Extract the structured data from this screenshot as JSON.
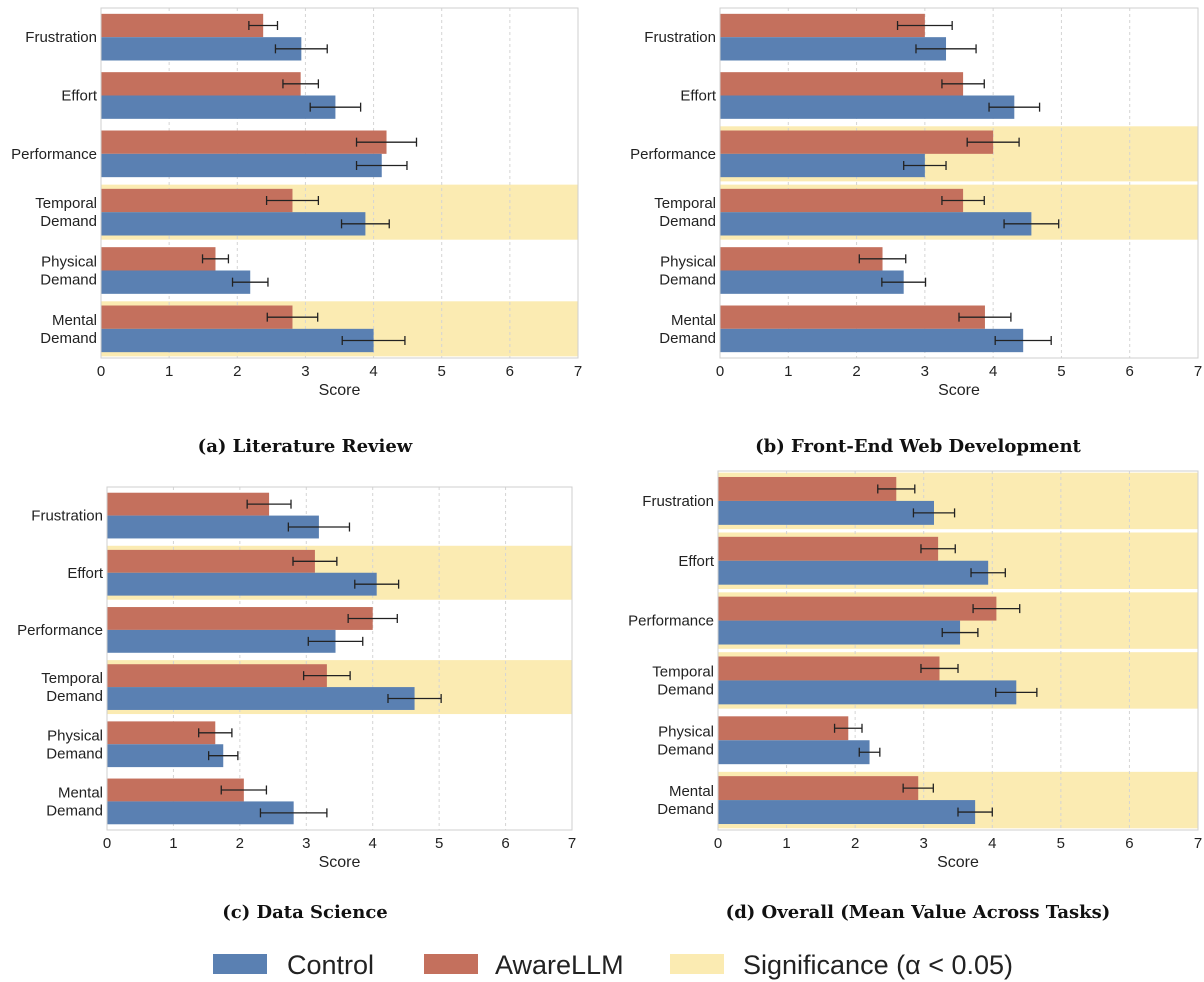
{
  "legend": {
    "control_label": "Control",
    "awarellm_label": "AwareLLM",
    "significance_label": "Significance (α < 0.05)"
  },
  "colors": {
    "control": "#5a80b2",
    "awarellm": "#c4705d",
    "significance": "#fbebb2",
    "grid": "#d4d4d4",
    "errorbar": "#222222"
  },
  "chart_data": [
    {
      "type": "bar",
      "orientation": "horizontal",
      "caption": "(a) Literature Review",
      "categories": [
        "Frustration",
        "Effort",
        "Performance",
        "Temporal Demand",
        "Physical Demand",
        "Mental Demand"
      ],
      "series": [
        {
          "name": "AwareLLM",
          "values": [
            2.38,
            2.93,
            4.19,
            2.81,
            1.68,
            2.81
          ],
          "errors": [
            0.21,
            0.26,
            0.44,
            0.38,
            0.19,
            0.37
          ]
        },
        {
          "name": "Control",
          "values": [
            2.94,
            3.44,
            4.12,
            3.88,
            2.19,
            4.0
          ],
          "errors": [
            0.38,
            0.37,
            0.37,
            0.35,
            0.26,
            0.46
          ]
        }
      ],
      "significant": [
        "Temporal Demand",
        "Mental Demand"
      ],
      "xlabel": "Score",
      "xlim": [
        0,
        7
      ],
      "xticks": [
        0,
        1,
        2,
        3,
        4,
        5,
        6,
        7
      ],
      "grid": "x-dashed"
    },
    {
      "type": "bar",
      "orientation": "horizontal",
      "caption": "(b) Front-End Web Development",
      "categories": [
        "Frustration",
        "Effort",
        "Performance",
        "Temporal Demand",
        "Physical Demand",
        "Mental Demand"
      ],
      "series": [
        {
          "name": "AwareLLM",
          "values": [
            3.0,
            3.56,
            4.0,
            3.56,
            2.38,
            3.88
          ],
          "errors": [
            0.4,
            0.31,
            0.38,
            0.31,
            0.34,
            0.38
          ]
        },
        {
          "name": "Control",
          "values": [
            3.31,
            4.31,
            3.0,
            4.56,
            2.69,
            4.44
          ],
          "errors": [
            0.44,
            0.37,
            0.31,
            0.4,
            0.32,
            0.41
          ]
        }
      ],
      "significant": [
        "Performance",
        "Temporal Demand"
      ],
      "xlabel": "Score",
      "xlim": [
        0,
        7
      ],
      "xticks": [
        0,
        1,
        2,
        3,
        4,
        5,
        6,
        7
      ],
      "grid": "x-dashed"
    },
    {
      "type": "bar",
      "orientation": "horizontal",
      "caption": "(c) Data Science",
      "categories": [
        "Frustration",
        "Effort",
        "Performance",
        "Temporal Demand",
        "Physical Demand",
        "Mental Demand"
      ],
      "series": [
        {
          "name": "AwareLLM",
          "values": [
            2.44,
            3.13,
            4.0,
            3.31,
            1.63,
            2.06
          ],
          "errors": [
            0.33,
            0.33,
            0.37,
            0.35,
            0.25,
            0.34
          ]
        },
        {
          "name": "Control",
          "values": [
            3.19,
            4.06,
            3.44,
            4.63,
            1.75,
            2.81
          ],
          "errors": [
            0.46,
            0.33,
            0.41,
            0.4,
            0.22,
            0.5
          ]
        }
      ],
      "significant": [
        "Effort",
        "Temporal Demand"
      ],
      "xlabel": "Score",
      "xlim": [
        0,
        7
      ],
      "xticks": [
        0,
        1,
        2,
        3,
        4,
        5,
        6,
        7
      ],
      "grid": "x-dashed"
    },
    {
      "type": "bar",
      "orientation": "horizontal",
      "caption": "(d) Overall (Mean Value Across Tasks)",
      "categories": [
        "Frustration",
        "Effort",
        "Performance",
        "Temporal Demand",
        "Physical Demand",
        "Mental Demand"
      ],
      "series": [
        {
          "name": "AwareLLM",
          "values": [
            2.6,
            3.21,
            4.06,
            3.23,
            1.9,
            2.92
          ],
          "errors": [
            0.27,
            0.25,
            0.34,
            0.27,
            0.2,
            0.22
          ]
        },
        {
          "name": "Control",
          "values": [
            3.15,
            3.94,
            3.53,
            4.35,
            2.21,
            3.75
          ],
          "errors": [
            0.3,
            0.25,
            0.26,
            0.3,
            0.15,
            0.25
          ]
        }
      ],
      "significant": [
        "Frustration",
        "Effort",
        "Performance",
        "Temporal Demand",
        "Mental Demand"
      ],
      "xlabel": "Score",
      "xlim": [
        0,
        7
      ],
      "xticks": [
        0,
        1,
        2,
        3,
        4,
        5,
        6,
        7
      ],
      "grid": "x-dashed"
    }
  ]
}
